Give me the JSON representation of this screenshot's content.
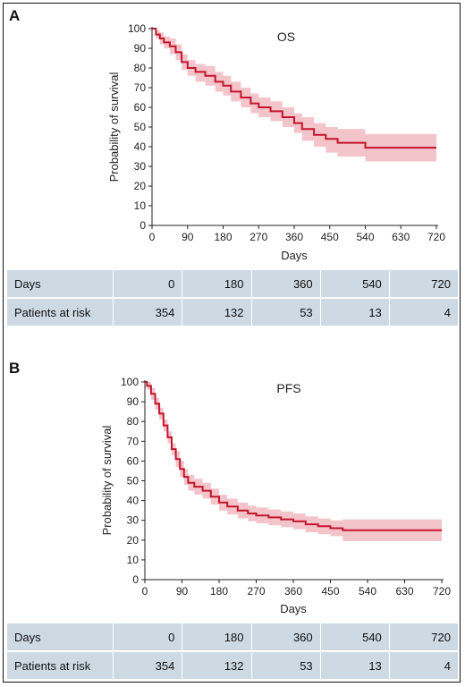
{
  "chart_data": [
    {
      "panel": "A",
      "type": "line",
      "title": "OS",
      "xlabel": "Days",
      "ylabel": "Probability of survival",
      "xlim": [
        0,
        720
      ],
      "ylim": [
        0,
        100
      ],
      "x_ticks": [
        0,
        90,
        180,
        270,
        360,
        450,
        540,
        630,
        720
      ],
      "y_ticks": [
        0,
        10,
        20,
        30,
        40,
        50,
        60,
        70,
        80,
        90,
        100
      ],
      "line_color": "#c4142c",
      "band_color": "#f4c4cb",
      "series": [
        {
          "x": [
            0,
            10,
            20,
            30,
            45,
            60,
            75,
            90,
            110,
            135,
            160,
            180,
            200,
            225,
            250,
            270,
            300,
            330,
            360,
            380,
            410,
            440,
            470,
            500,
            530,
            540,
            600,
            660,
            720
          ],
          "y": [
            100,
            97,
            95,
            93,
            91,
            88,
            83,
            80,
            78,
            76,
            73,
            71,
            68,
            65,
            62,
            60,
            58,
            55,
            52,
            49,
            46,
            44,
            42,
            42,
            42,
            39.5,
            39.5,
            39.5,
            39.5
          ],
          "lower": [
            100,
            95,
            92,
            90,
            87,
            84,
            79,
            76,
            73,
            71,
            68,
            66,
            63,
            60,
            57,
            55,
            53,
            50,
            47,
            43,
            40,
            37,
            35,
            35,
            35,
            32.5,
            32.5,
            32.5,
            32.5
          ],
          "upper": [
            100,
            99,
            98,
            96,
            95,
            92,
            87,
            84,
            82,
            81,
            78,
            76,
            73,
            70,
            67,
            65,
            63,
            60,
            57,
            55,
            52,
            50,
            49,
            49,
            49,
            46.5,
            46.5,
            46.5,
            46.5
          ]
        }
      ],
      "risk_table": {
        "header": "Days",
        "row_label": "Patients at risk",
        "days": [
          "0",
          "180",
          "360",
          "540",
          "720"
        ],
        "at_risk": [
          "354",
          "132",
          "53",
          "13",
          "4"
        ]
      }
    },
    {
      "panel": "B",
      "type": "line",
      "title": "PFS",
      "xlabel": "Days",
      "ylabel": "Probability of survival",
      "xlim": [
        0,
        720
      ],
      "ylim": [
        0,
        100
      ],
      "x_ticks": [
        0,
        90,
        180,
        270,
        360,
        450,
        540,
        630,
        720
      ],
      "y_ticks": [
        0,
        10,
        20,
        30,
        40,
        50,
        60,
        70,
        80,
        90,
        100
      ],
      "line_color": "#c4142c",
      "band_color": "#f4c4cb",
      "series": [
        {
          "x": [
            0,
            5,
            15,
            25,
            35,
            45,
            55,
            65,
            75,
            85,
            95,
            105,
            120,
            140,
            160,
            180,
            200,
            225,
            250,
            270,
            300,
            330,
            360,
            390,
            420,
            450,
            480,
            520,
            560,
            600,
            660,
            720
          ],
          "y": [
            100,
            98,
            94,
            89,
            84,
            78,
            72,
            66,
            61,
            56,
            52,
            49,
            47,
            45,
            42,
            39,
            37,
            35,
            33.5,
            32.5,
            31.5,
            30.5,
            29.5,
            28,
            27,
            26,
            25,
            25,
            25,
            25,
            25,
            25
          ],
          "lower": [
            100,
            96,
            91,
            86,
            81,
            75,
            69,
            63,
            57,
            52,
            48,
            45,
            43,
            41,
            38,
            35,
            33,
            31,
            29.5,
            28.5,
            27.5,
            26.5,
            25.5,
            24,
            23,
            22,
            19.5,
            19.5,
            19.5,
            19.5,
            19.5,
            19.5
          ],
          "upper": [
            100,
            100,
            97,
            92,
            87,
            81,
            75,
            69,
            65,
            60,
            56,
            53,
            51,
            49,
            46,
            43,
            41,
            39,
            37.5,
            36.5,
            35.5,
            34.5,
            33.5,
            32,
            31,
            30,
            30.5,
            30.5,
            30.5,
            30.5,
            30.5,
            30.5
          ]
        }
      ],
      "risk_table": {
        "header": "Days",
        "row_label": "Patients at risk",
        "days": [
          "0",
          "180",
          "360",
          "540",
          "720"
        ],
        "at_risk": [
          "354",
          "132",
          "53",
          "13",
          "4"
        ]
      }
    }
  ]
}
